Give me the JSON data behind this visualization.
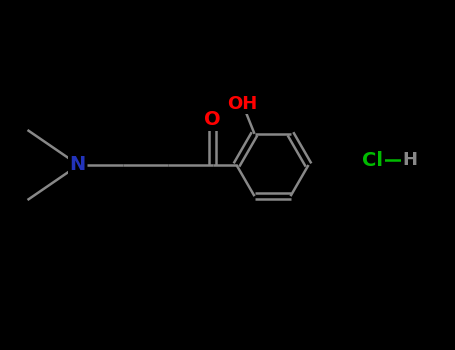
{
  "background_color": "#000000",
  "bond_color": "#888888",
  "atom_colors": {
    "N": "#2233bb",
    "O": "#ff0000",
    "Cl": "#00bb00",
    "H": "#888888",
    "C": "#888888"
  },
  "figsize": [
    4.55,
    3.5
  ],
  "dpi": 100,
  "bond_lw": 1.8,
  "font_size": 14
}
